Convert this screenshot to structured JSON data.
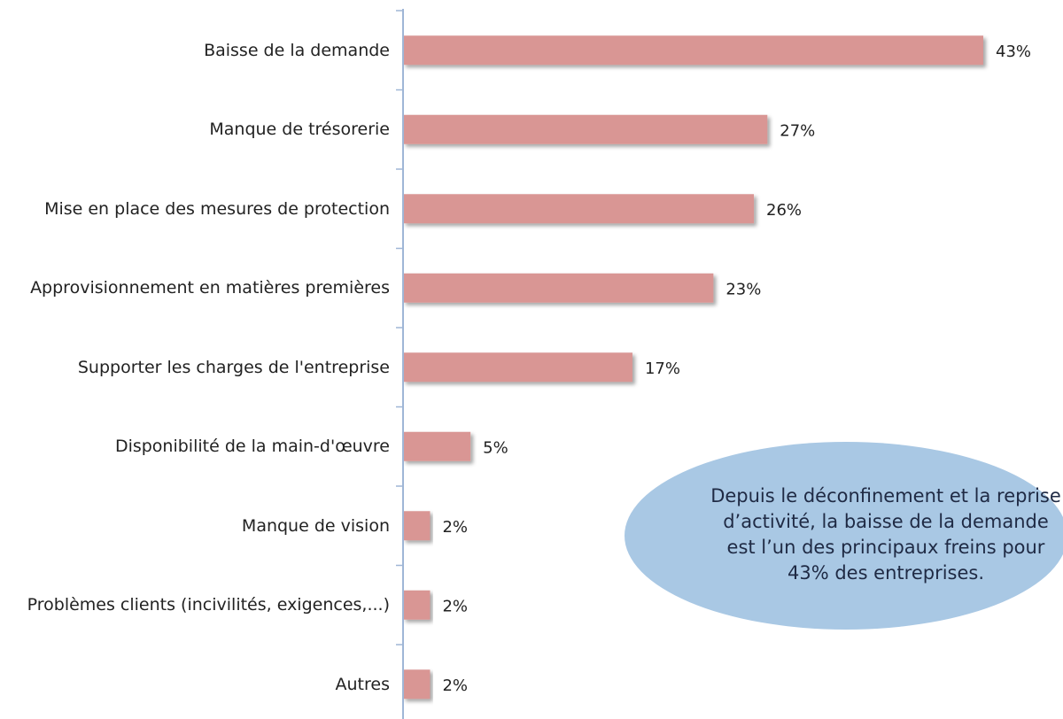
{
  "chart_data": {
    "type": "bar",
    "orientation": "horizontal",
    "categories": [
      "Baisse de la demande",
      "Manque de trésorerie",
      "Mise en place des mesures de protection",
      "Approvisionnement en matières premières",
      "Supporter les charges de l'entreprise",
      "Disponibilité de la main-d'œuvre",
      "Manque de vision",
      "Problèmes clients (incivilités, exigences,...)",
      "Autres"
    ],
    "values": [
      43,
      27,
      26,
      23,
      17,
      5,
      2,
      2,
      2
    ],
    "value_labels": [
      "43%",
      "27%",
      "26%",
      "23%",
      "17%",
      "5%",
      "2%",
      "2%",
      "2%"
    ],
    "color": "#d99694",
    "annotation": "Depuis le déconfinement et la reprise d’activité, la baisse de la demande est l’un des principaux freins pour 43% des entreprises."
  }
}
